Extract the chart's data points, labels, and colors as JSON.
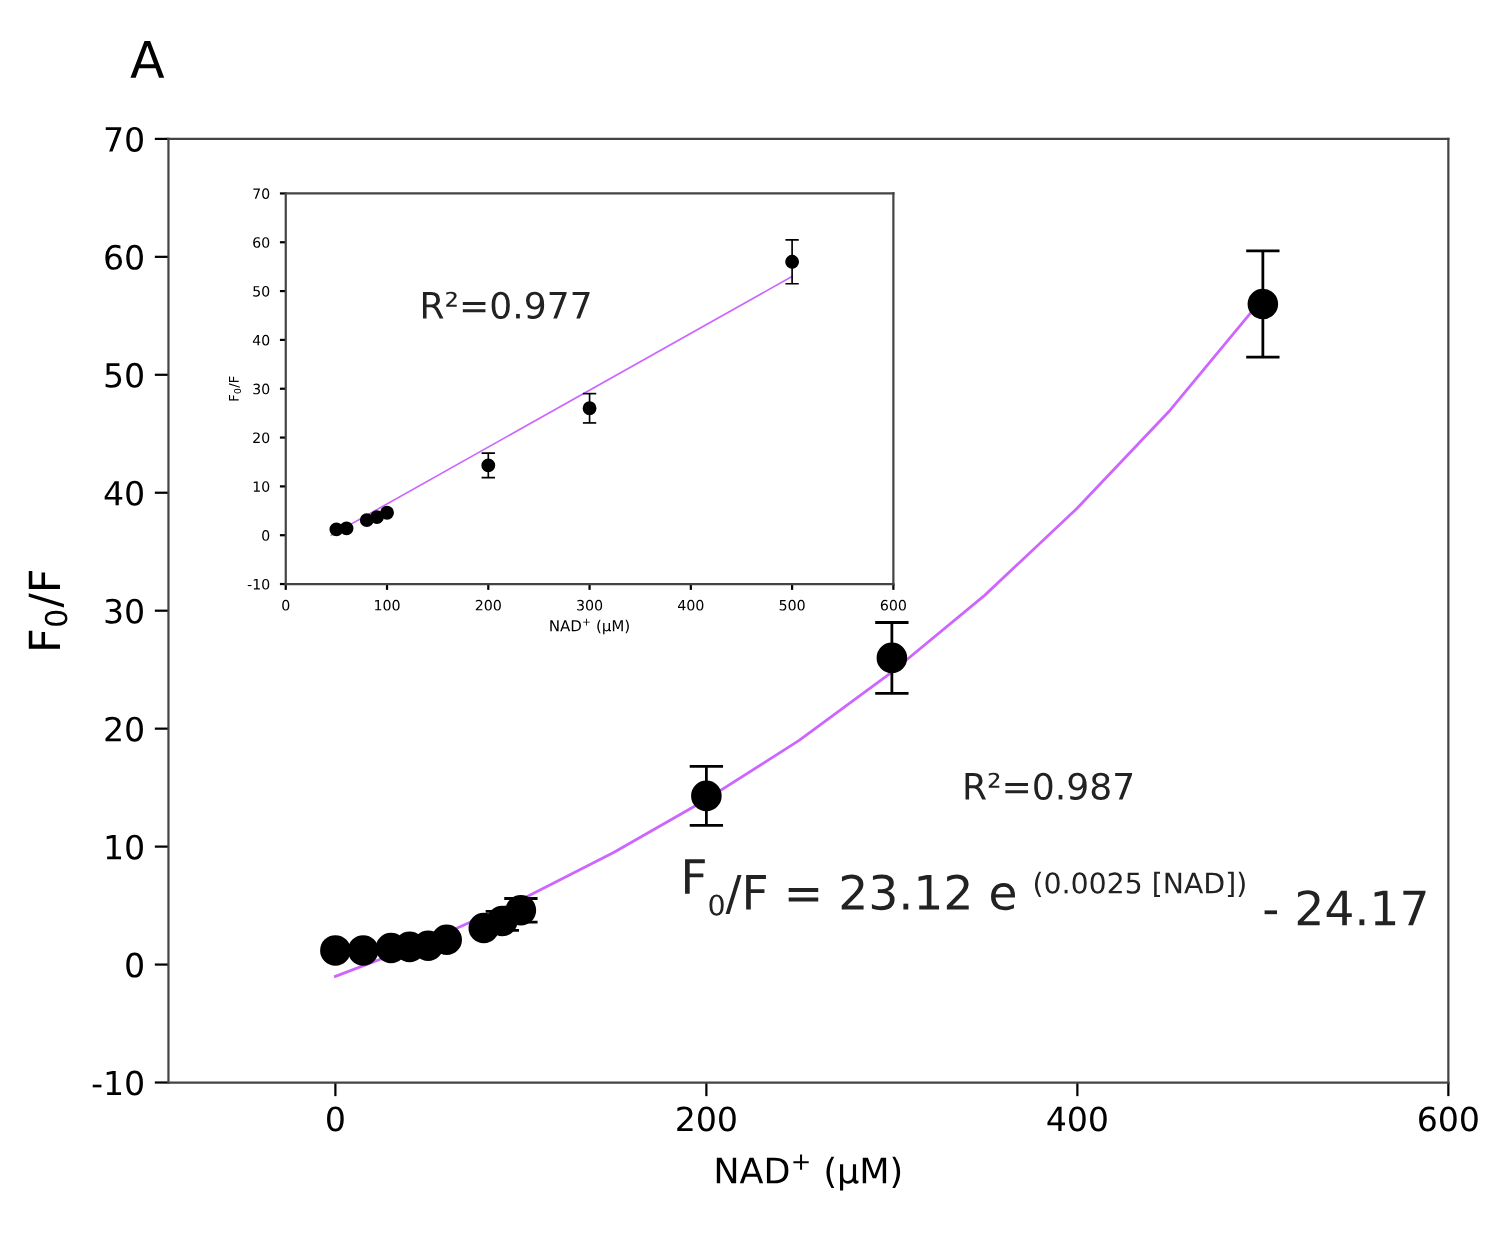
{
  "chart_data": [
    {
      "type": "scatter",
      "title": "A",
      "xlabel": "NAD$^{+}$ (μM)",
      "ylabel": "F$_{0}$/F",
      "xlim": [
        -90,
        600
      ],
      "ylim": [
        -10,
        70
      ],
      "xticks": [
        0,
        200,
        400,
        600
      ],
      "yticks": [
        -10,
        0,
        10,
        20,
        30,
        40,
        50,
        60,
        70
      ],
      "grid": false,
      "legend": false,
      "marker": "circle",
      "annotations": [
        "R²=0.987",
        "F$_{0}$/F = 23.12 e $^{(0.0025 [NAD])}$ - 24.17"
      ],
      "series": [
        {
          "type": "line",
          "color": "#cc66ff",
          "line_style": "solid",
          "marker": "none",
          "x": [
            0,
            50,
            100,
            150,
            200,
            250,
            300,
            350,
            400,
            450,
            500
          ],
          "values": [
            -1,
            2.0,
            5.5,
            9.5,
            14.0,
            19.0,
            24.8,
            31.3,
            38.7,
            47.0,
            56.5
          ]
        },
        {
          "color": "#000000",
          "x": [
            0,
            15,
            30,
            40,
            50,
            60,
            80,
            90,
            100,
            200,
            300,
            500
          ],
          "values": [
            1.2,
            1.2,
            1.4,
            1.5,
            1.6,
            2.1,
            3.1,
            3.7,
            4.6,
            14.3,
            26,
            56
          ],
          "errors": [
            null,
            null,
            null,
            null,
            null,
            null,
            null,
            0.8,
            1.0,
            2.5,
            3,
            4.5
          ]
        }
      ]
    },
    {
      "type": "scatter",
      "xlabel": "NAD$^{+}$ (μM)",
      "ylabel": "F$_{0}$/F",
      "xlim": [
        0,
        600
      ],
      "ylim": [
        -10,
        70
      ],
      "xticks": [
        0,
        100,
        200,
        300,
        400,
        500,
        600
      ],
      "yticks": [
        -10,
        0,
        10,
        20,
        30,
        40,
        50,
        60,
        70
      ],
      "grid": false,
      "legend": false,
      "marker": "circle",
      "annotations": [
        "R²=0.977"
      ],
      "series": [
        {
          "type": "line",
          "color": "#cc66ff",
          "line_style": "solid",
          "marker": "none",
          "x": [
            45,
            500
          ],
          "values": [
            0,
            53
          ]
        },
        {
          "color": "#000000",
          "x": [
            50,
            60,
            80,
            90,
            100,
            200,
            300,
            500
          ],
          "values": [
            1.2,
            1.4,
            3.1,
            3.7,
            4.6,
            14.3,
            26,
            56
          ],
          "errors": [
            null,
            null,
            null,
            null,
            null,
            2.5,
            3,
            4.5
          ]
        }
      ]
    }
  ]
}
